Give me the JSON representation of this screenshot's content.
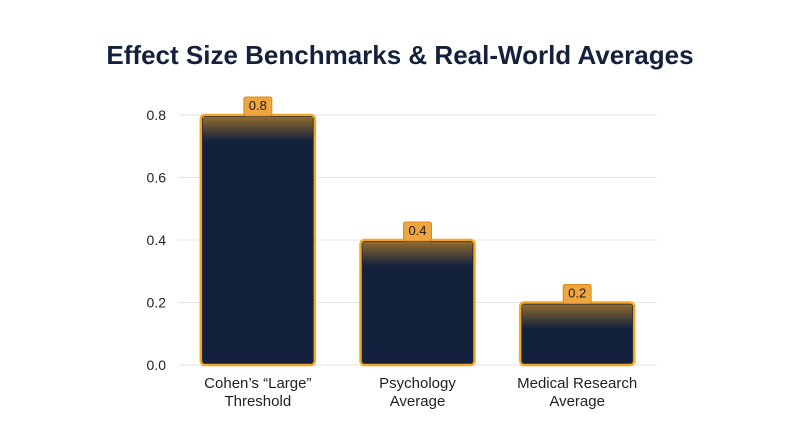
{
  "chart_data": {
    "type": "bar",
    "title": "Effect Size Benchmarks & Real-World Averages",
    "xlabel": "",
    "ylabel": "",
    "categories": [
      [
        "Cohen’s “Large”",
        "Threshold"
      ],
      [
        "Psychology",
        "Average"
      ],
      [
        "Medical Research",
        "Average"
      ]
    ],
    "values": [
      0.8,
      0.4,
      0.2
    ],
    "data_labels": [
      "0.8",
      "0.4",
      "0.2"
    ],
    "ylim": [
      0,
      0.8
    ],
    "yticks": [
      0.0,
      0.2,
      0.4,
      0.6,
      0.8
    ],
    "ytick_labels": [
      "0.0",
      "0.2",
      "0.4",
      "0.6",
      "0.8"
    ],
    "grid": true,
    "legend": "none",
    "colors": {
      "bar_fill": "#14213d",
      "bar_edge": "#f5a623",
      "label_bg": "#f0a640",
      "label_border": "#d98d1e",
      "grid": "#e6e6e6",
      "title": "#14213d"
    }
  }
}
